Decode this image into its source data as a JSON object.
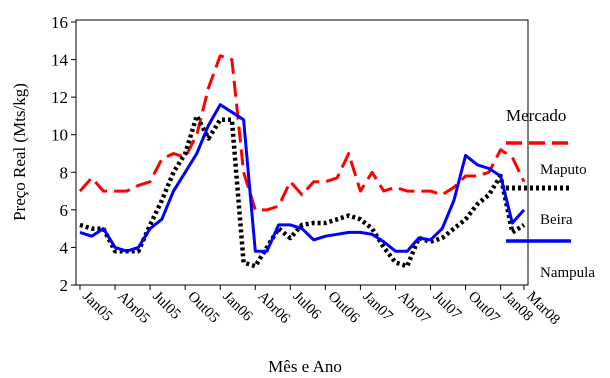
{
  "chart_data": {
    "type": "line",
    "title": "",
    "xlabel": "Mês e Ano",
    "ylabel": "Preço Real (Mts/kg)",
    "ylim": [
      2,
      16
    ],
    "yticks": [
      2,
      4,
      6,
      8,
      10,
      12,
      14,
      16
    ],
    "grid": false,
    "legend": {
      "title": "Mercado",
      "placement": "right",
      "entries": [
        "Maputo",
        "Beira",
        "Nampula"
      ]
    },
    "x": [
      "Jan05",
      "Fev05",
      "Mar05",
      "Abr05",
      "Mai05",
      "Jun05",
      "Jul05",
      "Ago05",
      "Set05",
      "Out05",
      "Nov05",
      "Dez05",
      "Jan06",
      "Fev06",
      "Mar06",
      "Abr06",
      "Mai06",
      "Jun06",
      "Jul06",
      "Ago06",
      "Set06",
      "Out06",
      "Nov06",
      "Dez06",
      "Jan07",
      "Fev07",
      "Mar07",
      "Abr07",
      "Mai07",
      "Jun07",
      "Jul07",
      "Ago07",
      "Set07",
      "Out07",
      "Nov07",
      "Dez07",
      "Jan08",
      "Fev08",
      "Mar08"
    ],
    "x_tick_labels": [
      "Jan05",
      "Abr05",
      "Jul05",
      "Out05",
      "Jan06",
      "Abr06",
      "Jul06",
      "Out06",
      "Jan07",
      "Abr07",
      "Jul07",
      "Out07",
      "Jan08",
      "Mar08"
    ],
    "series": [
      {
        "name": "Maputo",
        "color": "#ff0000",
        "style": "dashed",
        "values": [
          7.0,
          7.7,
          7.0,
          7.0,
          7.0,
          7.3,
          7.5,
          8.7,
          9.0,
          8.8,
          10.0,
          12.5,
          14.2,
          14.0,
          8.0,
          6.0,
          6.0,
          6.2,
          7.5,
          6.8,
          7.5,
          7.5,
          7.7,
          9.0,
          7.0,
          8.0,
          7.0,
          7.2,
          7.0,
          7.0,
          7.0,
          6.8,
          7.2,
          7.8,
          7.8,
          8.0,
          9.2,
          8.8,
          7.5
        ]
      },
      {
        "name": "Beira",
        "color": "#000000",
        "style": "dotted",
        "values": [
          5.2,
          5.0,
          5.0,
          3.8,
          3.8,
          3.8,
          5.2,
          6.5,
          8.0,
          9.0,
          11.0,
          9.8,
          10.8,
          10.8,
          3.2,
          3.0,
          4.0,
          5.0,
          4.5,
          5.2,
          5.3,
          5.3,
          5.5,
          5.7,
          5.5,
          5.0,
          4.0,
          3.2,
          3.0,
          4.5,
          4.3,
          4.5,
          5.0,
          5.5,
          6.3,
          6.8,
          7.8,
          4.8,
          5.2
        ]
      },
      {
        "name": "Nampula",
        "color": "#0000ff",
        "style": "solid",
        "values": [
          4.8,
          4.6,
          5.0,
          4.0,
          3.8,
          4.0,
          5.0,
          5.5,
          7.0,
          8.0,
          9.0,
          10.5,
          11.6,
          11.2,
          10.8,
          3.8,
          3.8,
          5.2,
          5.2,
          5.0,
          4.4,
          4.6,
          4.7,
          4.8,
          4.8,
          4.7,
          4.3,
          3.8,
          3.8,
          4.5,
          4.4,
          5.0,
          6.5,
          8.9,
          8.4,
          8.2,
          7.8,
          5.3,
          6.0
        ]
      }
    ]
  }
}
